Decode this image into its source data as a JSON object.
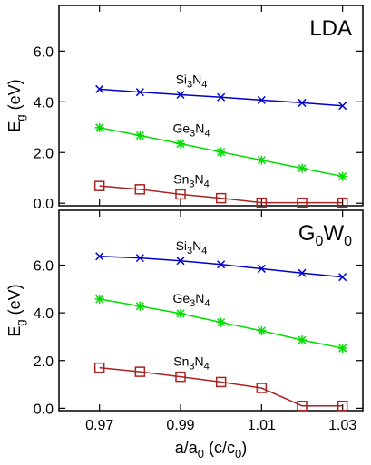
{
  "chart_data": [
    {
      "type": "line",
      "panel_label": {
        "main": "LDA",
        "sub": "",
        "tail": ""
      },
      "ylabel": {
        "main": "E",
        "sub": "g",
        "tail": " (eV)"
      },
      "xlabel": "",
      "xlim": [
        0.96,
        1.035
      ],
      "ylim": [
        -0.1,
        7.8
      ],
      "yticks": [
        0.0,
        2.0,
        4.0,
        6.0
      ],
      "ytick_labels": [
        "0.0",
        "2.0",
        "4.0",
        "6.0"
      ],
      "xticks": [
        0.97,
        0.99,
        1.01,
        1.03
      ],
      "xtick_labels": [],
      "grid": false,
      "legend": "none",
      "series": [
        {
          "name": "Si3N4",
          "label_parts": [
            "Si",
            "3",
            "N",
            "4"
          ],
          "color": "#0000cc",
          "marker": "x",
          "x": [
            0.97,
            0.98,
            0.99,
            1.0,
            1.01,
            1.02,
            1.03
          ],
          "values": [
            4.5,
            4.38,
            4.28,
            4.18,
            4.07,
            3.96,
            3.84
          ]
        },
        {
          "name": "Ge3N4",
          "label_parts": [
            "Ge",
            "3",
            "N",
            "4"
          ],
          "color": "#00dd00",
          "marker": "star",
          "x": [
            0.97,
            0.98,
            0.99,
            1.0,
            1.01,
            1.02,
            1.03
          ],
          "values": [
            2.98,
            2.67,
            2.35,
            2.02,
            1.7,
            1.38,
            1.06
          ]
        },
        {
          "name": "Sn3N4",
          "label_parts": [
            "Sn",
            "3",
            "N",
            "4"
          ],
          "color": "#aa2222",
          "marker": "square",
          "x": [
            0.97,
            0.98,
            0.99,
            1.0,
            1.01,
            1.02,
            1.03
          ],
          "values": [
            0.68,
            0.55,
            0.35,
            0.2,
            0.02,
            0.02,
            0.02
          ]
        }
      ]
    },
    {
      "type": "line",
      "panel_label": {
        "main": "G",
        "sub": "0",
        "tail": "W",
        "sub2": "0"
      },
      "ylabel": {
        "main": "E",
        "sub": "g",
        "tail": " (eV)"
      },
      "xlabel": {
        "main": "a/a",
        "sub": "0",
        "tail": " (c/c",
        "sub2": "0",
        "end": ")"
      },
      "xlim": [
        0.96,
        1.035
      ],
      "ylim": [
        -0.1,
        8.3
      ],
      "yticks": [
        0.0,
        2.0,
        4.0,
        6.0
      ],
      "ytick_labels": [
        "0.0",
        "2.0",
        "4.0",
        "6.0"
      ],
      "xticks": [
        0.97,
        0.99,
        1.01,
        1.03
      ],
      "xtick_labels": [
        "0.97",
        "0.99",
        "1.01",
        "1.03"
      ],
      "grid": false,
      "legend": "none",
      "series": [
        {
          "name": "Si3N4",
          "label_parts": [
            "Si",
            "3",
            "N",
            "4"
          ],
          "color": "#0000cc",
          "marker": "x",
          "x": [
            0.97,
            0.98,
            0.99,
            1.0,
            1.01,
            1.02,
            1.03
          ],
          "values": [
            6.37,
            6.3,
            6.18,
            6.03,
            5.85,
            5.67,
            5.5
          ]
        },
        {
          "name": "Ge3N4",
          "label_parts": [
            "Ge",
            "3",
            "N",
            "4"
          ],
          "color": "#00dd00",
          "marker": "star",
          "x": [
            0.97,
            0.98,
            0.99,
            1.0,
            1.01,
            1.02,
            1.03
          ],
          "values": [
            4.58,
            4.28,
            3.97,
            3.6,
            3.25,
            2.86,
            2.52
          ]
        },
        {
          "name": "Sn3N4",
          "label_parts": [
            "Sn",
            "3",
            "N",
            "4"
          ],
          "color": "#aa2222",
          "marker": "square",
          "x": [
            0.97,
            0.98,
            0.99,
            1.0,
            1.01,
            1.02,
            1.03
          ],
          "values": [
            1.7,
            1.53,
            1.32,
            1.1,
            0.85,
            0.1,
            0.1
          ]
        }
      ]
    }
  ]
}
